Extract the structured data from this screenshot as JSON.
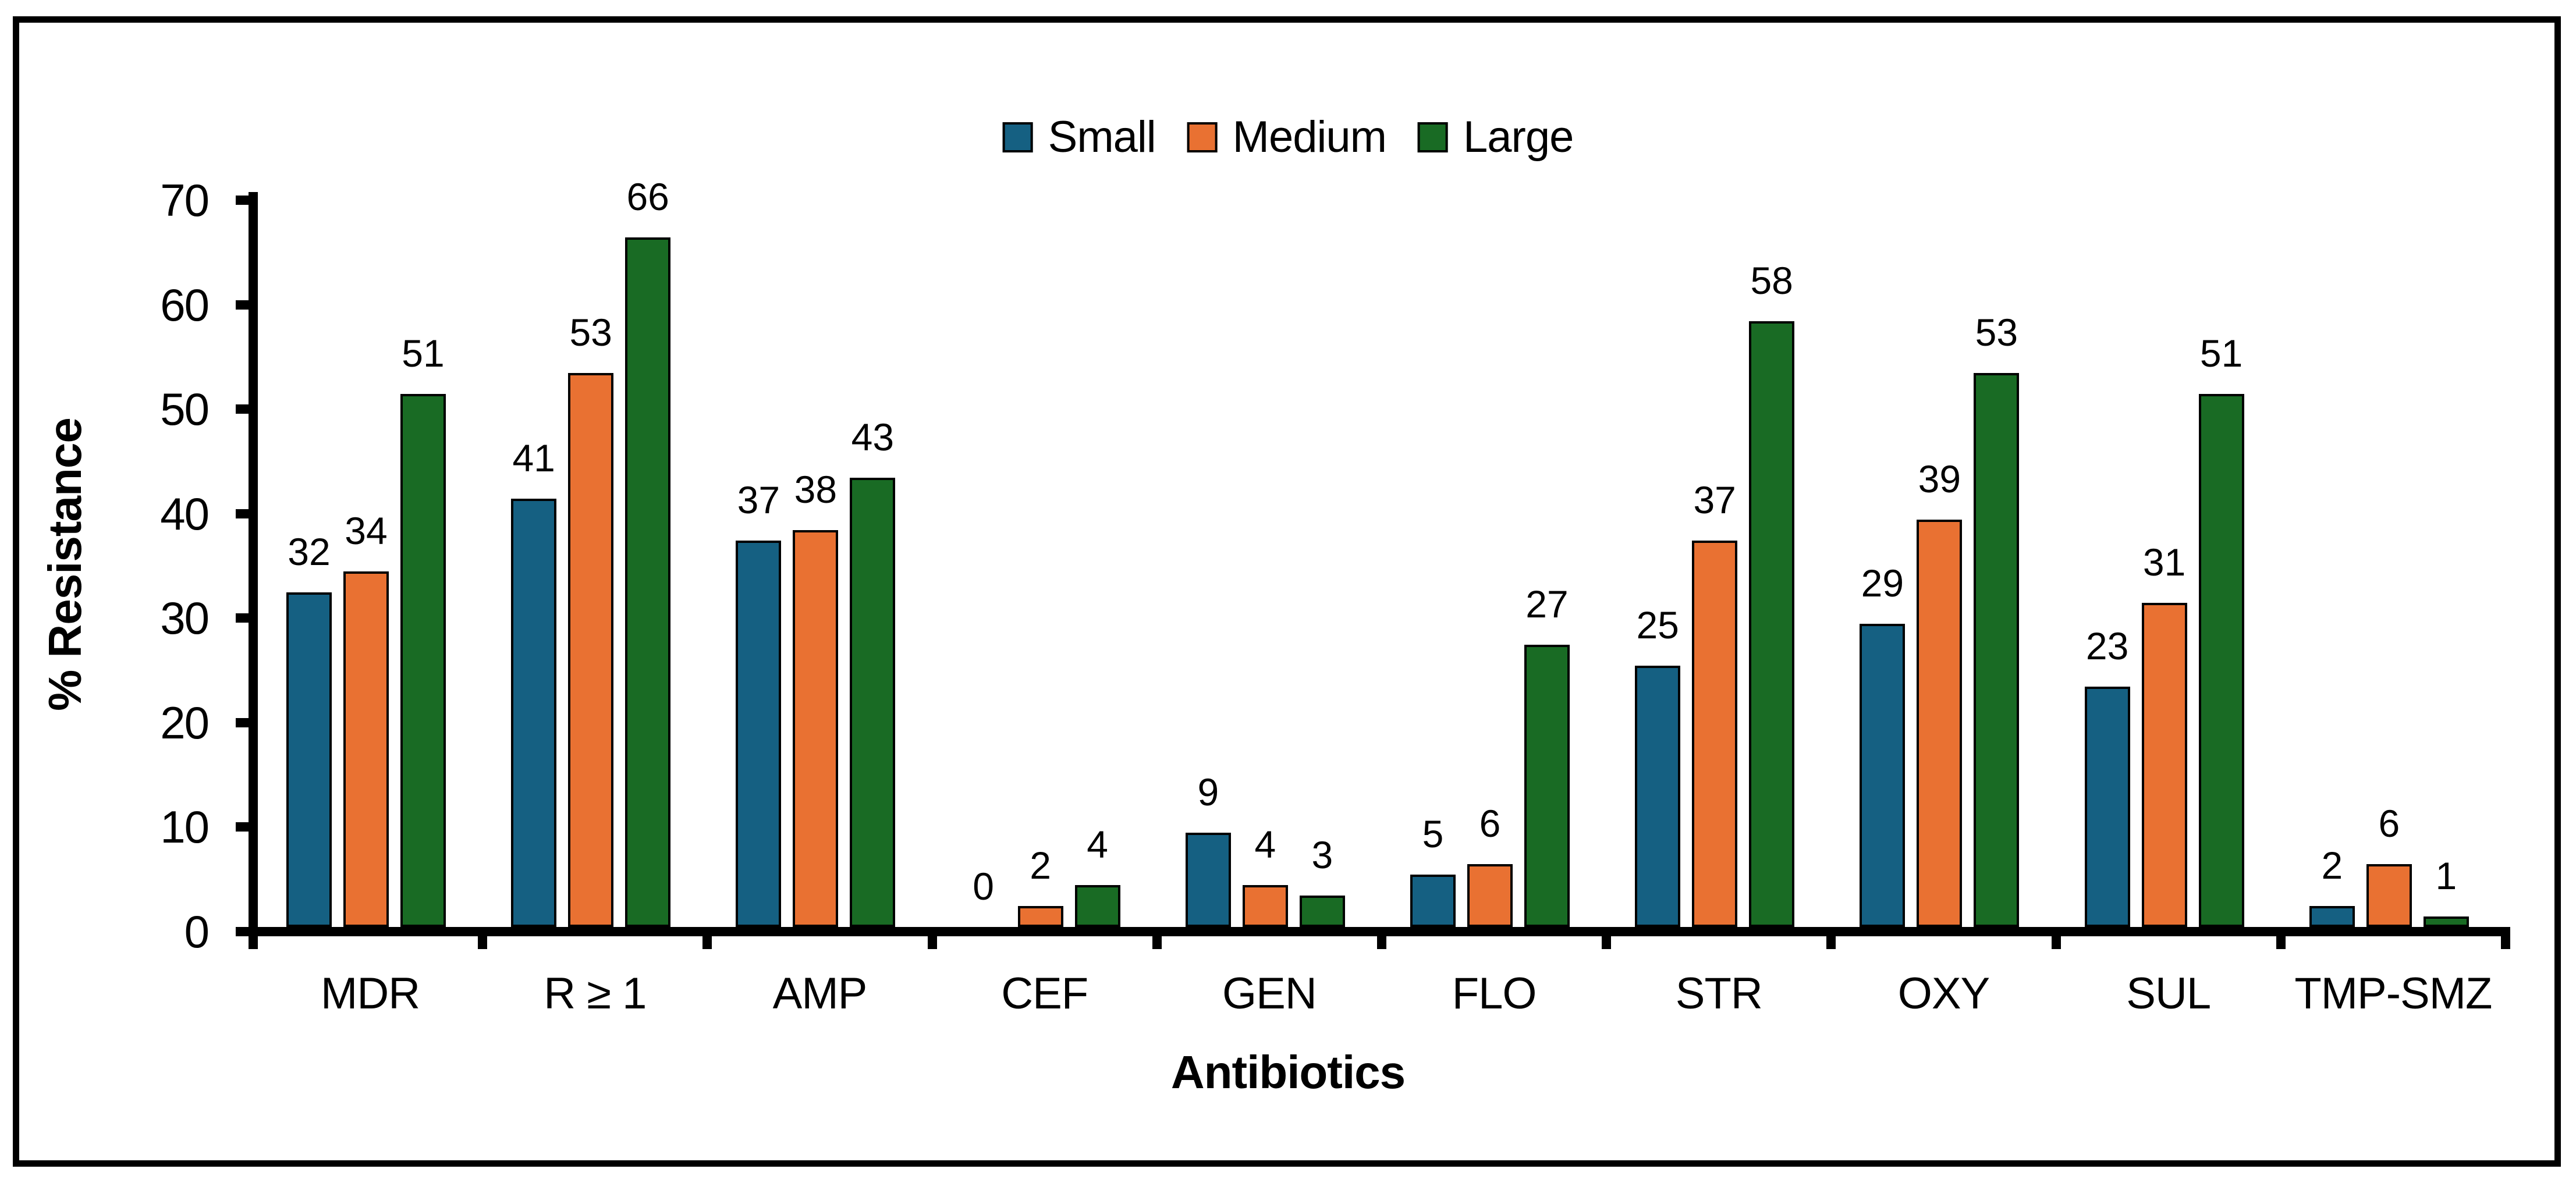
{
  "colors": {
    "background": "#ffffff",
    "frame_border": "#000000",
    "axis": "#000000",
    "text": "#000000",
    "bar_outline": "#000000"
  },
  "legend": {
    "items": [
      {
        "label": "Small",
        "color": "#156082"
      },
      {
        "label": "Medium",
        "color": "#E97132"
      },
      {
        "label": "Large",
        "color": "#196B24"
      }
    ]
  },
  "chart_data": {
    "type": "bar",
    "title": "",
    "xlabel": "Antibiotics",
    "ylabel": "% Resistance",
    "categories": [
      "MDR",
      "R ≥ 1",
      "AMP",
      "CEF",
      "GEN",
      "FLO",
      "STR",
      "OXY",
      "SUL",
      "TMP-SMZ"
    ],
    "series": [
      {
        "name": "Small",
        "color": "#156082",
        "values": [
          32,
          41,
          37,
          0,
          9,
          5,
          25,
          29,
          23,
          2
        ]
      },
      {
        "name": "Medium",
        "color": "#E97132",
        "values": [
          34,
          53,
          38,
          2,
          4,
          6,
          37,
          39,
          31,
          6
        ]
      },
      {
        "name": "Large",
        "color": "#196B24",
        "values": [
          51,
          66,
          43,
          4,
          3,
          27,
          58,
          53,
          51,
          1
        ]
      }
    ],
    "ylim": [
      0,
      70
    ],
    "ytick_step": 10,
    "grid": false,
    "data_labels": true,
    "legend_position": "top-center"
  }
}
